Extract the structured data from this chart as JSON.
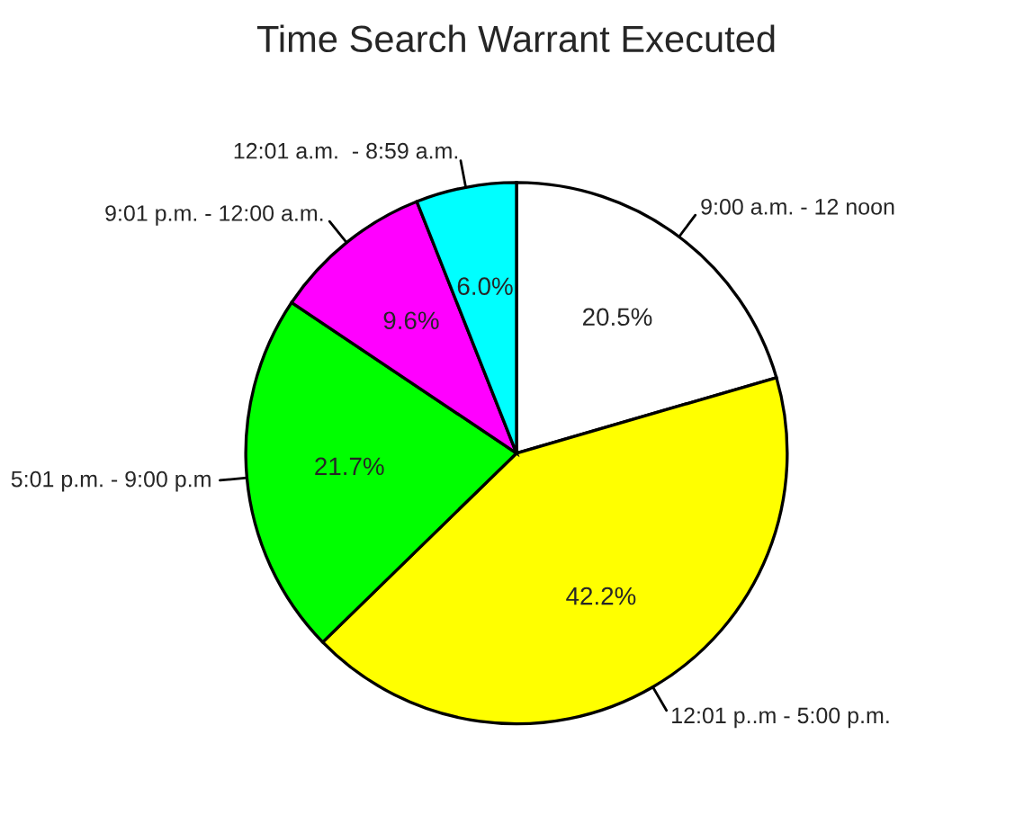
{
  "chart_data": {
    "type": "pie",
    "title": "Time Search Warrant Executed",
    "categories": [
      "9:00 a.m. - 12 noon",
      "12:01 p..m - 5:00 p.m.",
      "5:01 p.m. - 9:00 p.m",
      "9:01 p.m. - 12:00 a.m.",
      "12:01 a.m.  - 8:59 a.m."
    ],
    "values": [
      20.5,
      42.2,
      21.7,
      9.6,
      6.0
    ],
    "colors": [
      "#ffffff",
      "#ffff00",
      "#00ff00",
      "#ff00ff",
      "#00ffff"
    ],
    "value_labels": [
      "20.5%",
      "42.2%",
      "21.7%",
      "9.6%",
      "6.0%"
    ]
  }
}
